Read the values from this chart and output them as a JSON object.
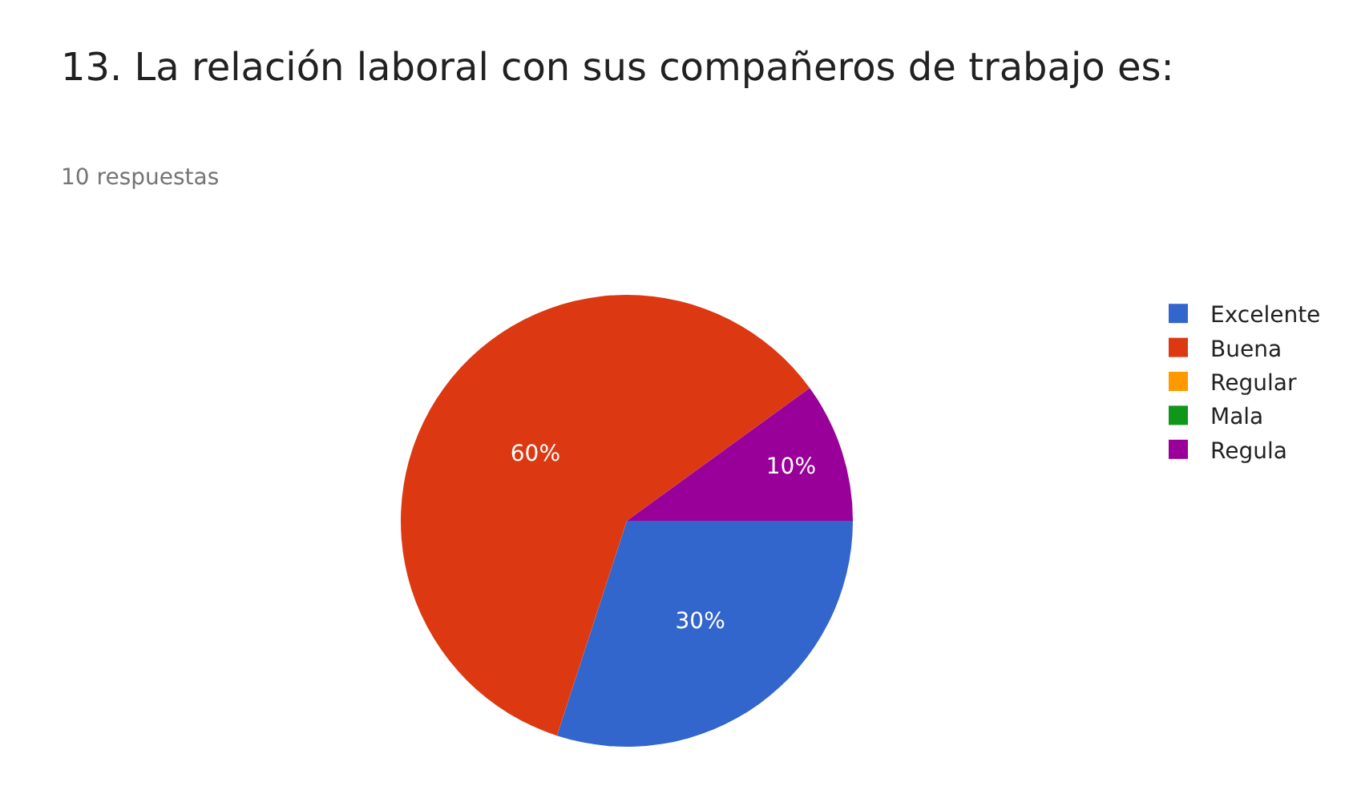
{
  "chart_data": {
    "type": "pie",
    "title": "13. La relación laboral con sus compañeros de trabajo es:",
    "subtitle": "10 respuestas",
    "categories": [
      "Excelente",
      "Buena",
      "Regular",
      "Mala",
      "Regula"
    ],
    "values": [
      30,
      60,
      0,
      0,
      10
    ],
    "colors": [
      "#3366cc",
      "#dc3912",
      "#ff9900",
      "#109618",
      "#990099"
    ],
    "value_labels": [
      "30%",
      "60%",
      null,
      null,
      "10%"
    ],
    "legend": "right"
  }
}
